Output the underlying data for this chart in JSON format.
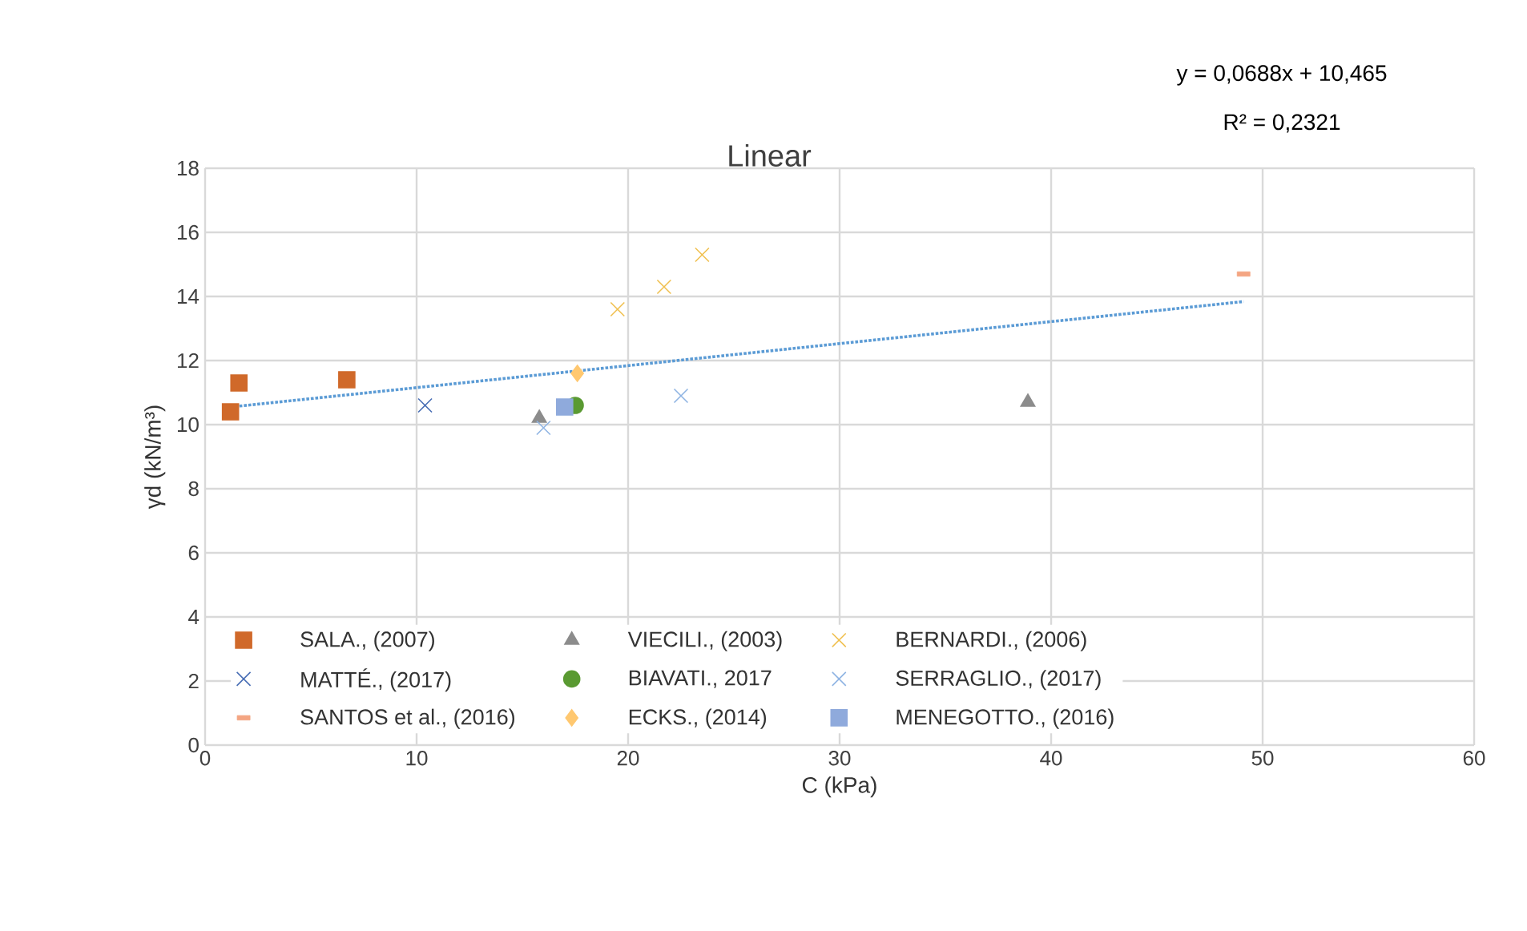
{
  "chart_data": {
    "type": "scatter",
    "title": "Linear",
    "xlabel": "C (kPa)",
    "ylabel": "γd (kN/m³)",
    "annotations": [
      "y = 0,0688x + 10,465",
      "R² = 0,2321"
    ],
    "xlim": [
      0,
      60
    ],
    "ylim": [
      0,
      18
    ],
    "xticks": [
      0,
      10,
      20,
      30,
      40,
      50,
      60
    ],
    "yticks": [
      0,
      2,
      4,
      6,
      8,
      10,
      12,
      14,
      16,
      18
    ],
    "grid": true,
    "legend": "bottom",
    "series": [
      {
        "name": "SALA., (2007)",
        "color": "#d0692a",
        "marker": "square",
        "x": [
          1.2,
          1.6,
          6.7
        ],
        "values": [
          10.4,
          11.3,
          11.4
        ]
      },
      {
        "name": "VIECILI., (2003)",
        "color": "#8c8c8c",
        "marker": "triangle",
        "x": [
          15.8,
          38.9
        ],
        "values": [
          10.2,
          10.7
        ]
      },
      {
        "name": "BERNARDI., (2006)",
        "color": "#f0c050",
        "marker": "cross",
        "x": [
          19.5,
          21.7,
          23.5
        ],
        "values": [
          13.6,
          14.3,
          15.3
        ]
      },
      {
        "name": "MATTÉ., (2017)",
        "color": "#4a6fb5",
        "marker": "cross",
        "x": [
          10.4
        ],
        "values": [
          10.6
        ]
      },
      {
        "name": "BIAVATI., 2017",
        "color": "#5a9a32",
        "marker": "circle",
        "x": [
          17.5
        ],
        "values": [
          10.6
        ]
      },
      {
        "name": "SERRAGLIO., (2017)",
        "color": "#8fb4e3",
        "marker": "cross",
        "x": [
          16.0,
          22.5
        ],
        "values": [
          9.9,
          10.9
        ]
      },
      {
        "name": "SANTOS et al., (2016)",
        "color": "#f4a582",
        "x": [
          49.1
        ],
        "values": [
          14.7
        ]
      },
      {
        "name": "ECKS., (2014)",
        "color": "#ffc870",
        "marker": "diamond",
        "x": [
          17.6
        ],
        "values": [
          11.6
        ]
      },
      {
        "name": "MENEGOTTO., (2016)",
        "color": "#8faadc",
        "marker": "square",
        "x": [
          17.0
        ],
        "values": [
          10.55
        ]
      },
      {
        "type": "line",
        "color": "#5b9bd5",
        "line_style": "dotted",
        "marker": "none",
        "x": [
          1.2,
          49.1
        ],
        "values": [
          10.55,
          13.84
        ]
      }
    ]
  }
}
